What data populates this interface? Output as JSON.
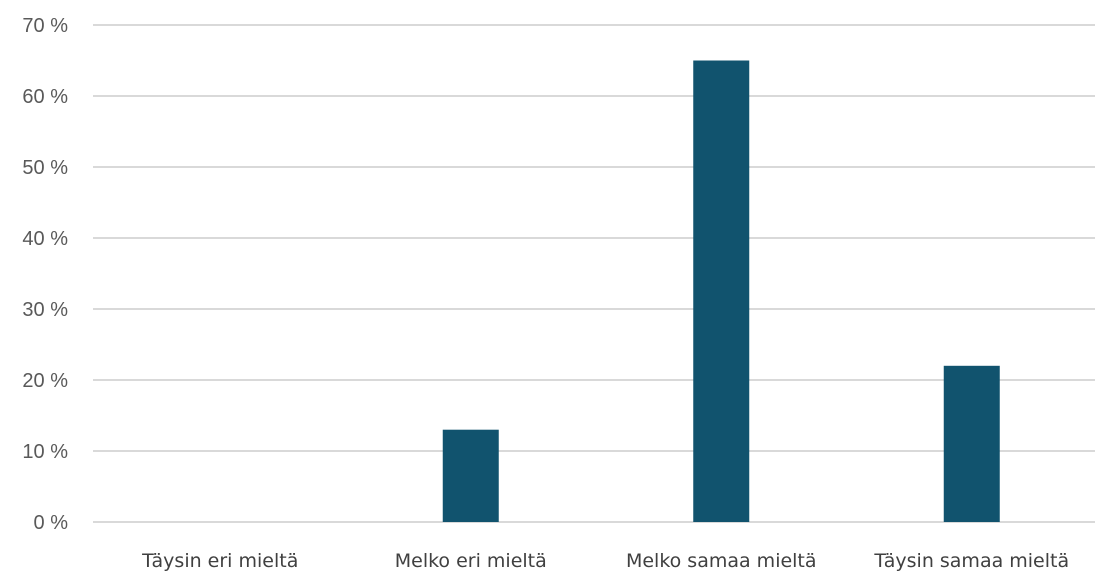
{
  "chart_data": {
    "type": "bar",
    "categories": [
      "Täysin eri mieltä",
      "Melko eri mieltä",
      "Melko samaa mieltä",
      "Täysin samaa mieltä"
    ],
    "values": [
      0,
      13,
      65,
      22
    ],
    "y_ticks": [
      "0 %",
      "10 %",
      "20 %",
      "30 %",
      "40 %",
      "50 %",
      "60 %",
      "70 %"
    ],
    "ylim": [
      0,
      70
    ],
    "y_step": 10,
    "grid": true,
    "legend": "none",
    "bar_color": "#11536e",
    "grid_color": "#d9d9d9"
  }
}
